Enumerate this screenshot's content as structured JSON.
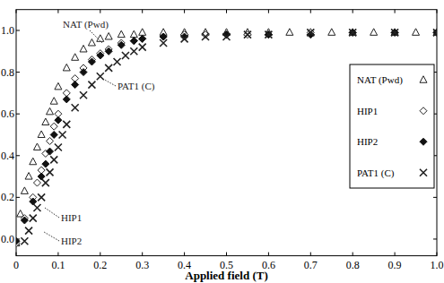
{
  "chart_data": {
    "type": "scatter",
    "x_label": "Applied field (T)",
    "xlim": [
      0,
      1.0
    ],
    "ylim": [
      -0.08,
      1.1
    ],
    "xticks": [
      0,
      0.1,
      0.2,
      0.3,
      0.4,
      0.5,
      0.6,
      0.7,
      0.8,
      0.9,
      {
        "value": 1.0,
        "label": "1.0"
      }
    ],
    "yticks": [
      {
        "value": 0.0,
        "label": "0.0"
      },
      0.2,
      0.4,
      0.6,
      0.8,
      {
        "value": 1.0,
        "label": "1.0"
      }
    ],
    "grid": false,
    "legend": "right",
    "annotations": [
      "NAT (Pwd)",
      "PAT1 (C)",
      "HIP1",
      "HIP2"
    ],
    "series": [
      {
        "name": "NAT (Pwd)",
        "color": "#222222",
        "marker": "triangle-open",
        "x": [
          0,
          0.01,
          0.02,
          0.03,
          0.04,
          0.05,
          0.06,
          0.07,
          0.08,
          0.09,
          0.1,
          0.12,
          0.14,
          0.16,
          0.18,
          0.2,
          0.22,
          0.25,
          0.28,
          0.3,
          0.35,
          0.4,
          0.45,
          0.5,
          0.55,
          0.6,
          0.65,
          0.7,
          0.75,
          0.8,
          0.85,
          0.9,
          0.95,
          1.0
        ],
        "values": [
          -0.02,
          0.12,
          0.23,
          0.3,
          0.37,
          0.44,
          0.5,
          0.56,
          0.61,
          0.66,
          0.73,
          0.82,
          0.87,
          0.91,
          0.94,
          0.96,
          0.97,
          0.98,
          0.98,
          0.99,
          0.99,
          0.99,
          0.99,
          0.99,
          0.99,
          0.99,
          0.99,
          0.99,
          0.99,
          0.99,
          0.99,
          0.99,
          0.99,
          0.99
        ]
      },
      {
        "name": "HIP1",
        "color": "#222222",
        "marker": "diamond-open",
        "x": [
          0,
          0.02,
          0.04,
          0.05,
          0.06,
          0.07,
          0.08,
          0.09,
          0.1,
          0.12,
          0.14,
          0.16,
          0.18,
          0.2,
          0.22,
          0.25,
          0.28,
          0.3,
          0.35,
          0.4,
          0.45,
          0.5,
          0.55,
          0.6,
          0.7,
          0.8,
          0.9,
          1.0
        ],
        "values": [
          -0.02,
          0.1,
          0.2,
          0.27,
          0.33,
          0.41,
          0.47,
          0.54,
          0.6,
          0.7,
          0.77,
          0.82,
          0.86,
          0.89,
          0.91,
          0.94,
          0.95,
          0.96,
          0.97,
          0.98,
          0.98,
          0.98,
          0.98,
          0.98,
          0.99,
          0.99,
          0.99,
          0.99
        ]
      },
      {
        "name": "HIP2",
        "color": "#111111",
        "marker": "diamond",
        "x": [
          0,
          0.02,
          0.04,
          0.06,
          0.07,
          0.08,
          0.09,
          0.1,
          0.12,
          0.14,
          0.16,
          0.18,
          0.2,
          0.22,
          0.25,
          0.28,
          0.3,
          0.35,
          0.4,
          0.5,
          0.6,
          0.7,
          0.8,
          0.9,
          1.0
        ],
        "values": [
          -0.01,
          0.09,
          0.18,
          0.3,
          0.36,
          0.42,
          0.5,
          0.57,
          0.67,
          0.74,
          0.8,
          0.85,
          0.88,
          0.9,
          0.93,
          0.95,
          0.96,
          0.97,
          0.97,
          0.98,
          0.98,
          0.98,
          0.99,
          0.99,
          0.99
        ]
      },
      {
        "name": "PAT1 (C)",
        "color": "#222222",
        "marker": "x",
        "x": [
          0.02,
          0.03,
          0.04,
          0.05,
          0.06,
          0.07,
          0.08,
          0.09,
          0.1,
          0.11,
          0.12,
          0.14,
          0.16,
          0.18,
          0.2,
          0.22,
          0.24,
          0.26,
          0.28,
          0.3,
          0.35,
          0.4,
          0.45,
          0.5,
          0.55,
          0.6,
          0.7,
          0.8,
          0.9,
          1.0
        ],
        "values": [
          -0.01,
          0.04,
          0.1,
          0.15,
          0.2,
          0.27,
          0.32,
          0.38,
          0.44,
          0.5,
          0.55,
          0.63,
          0.69,
          0.74,
          0.78,
          0.82,
          0.85,
          0.88,
          0.9,
          0.92,
          0.94,
          0.96,
          0.97,
          0.97,
          0.98,
          0.98,
          0.99,
          0.99,
          0.99,
          0.99
        ]
      }
    ]
  }
}
